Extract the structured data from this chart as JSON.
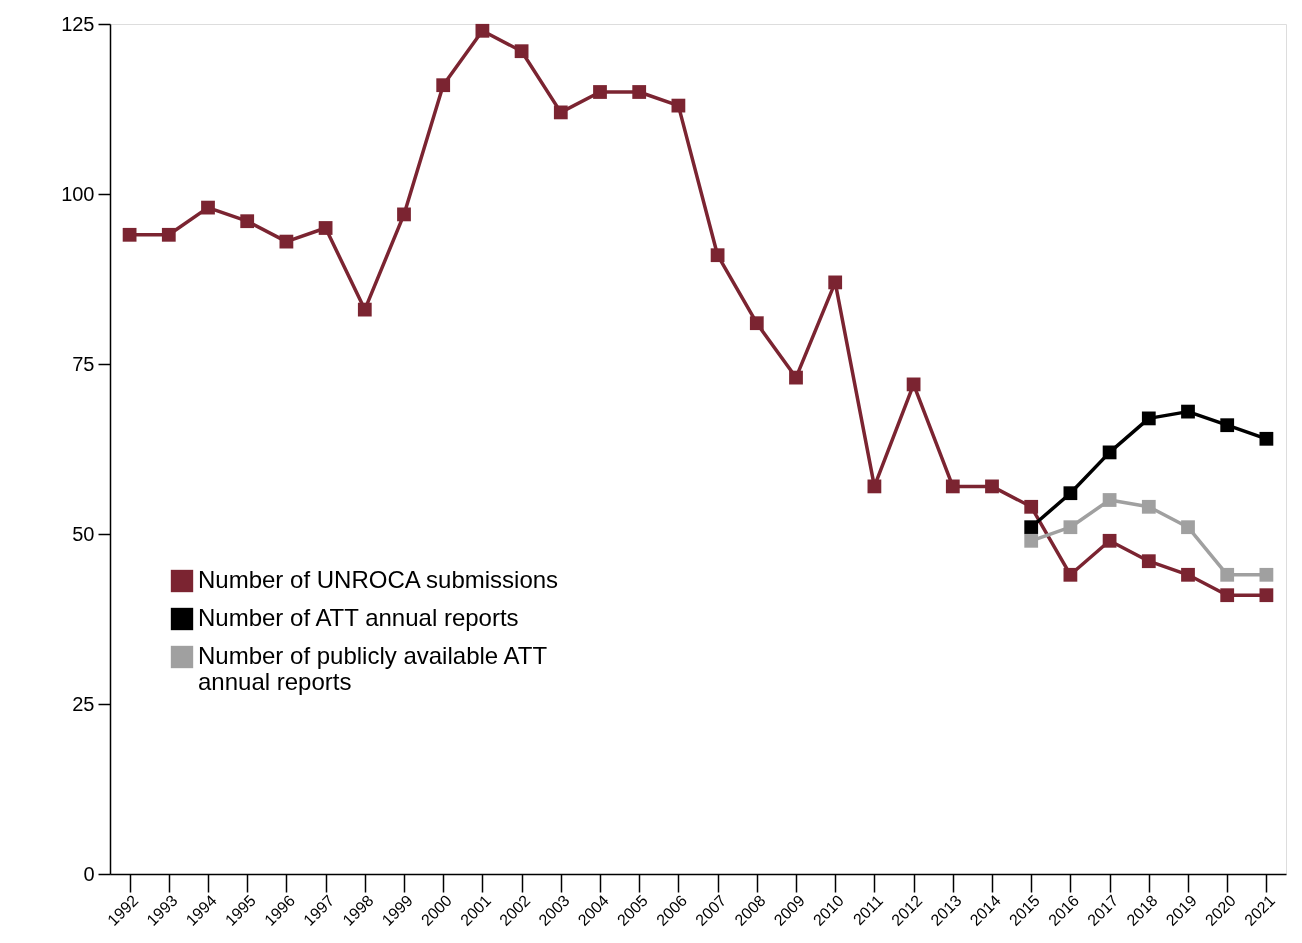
{
  "chart_data": {
    "type": "line",
    "categories": [
      "1992",
      "1993",
      "1994",
      "1995",
      "1996",
      "1997",
      "1998",
      "1999",
      "2000",
      "2001",
      "2002",
      "2003",
      "2004",
      "2005",
      "2006",
      "2007",
      "2008",
      "2009",
      "2010",
      "2011",
      "2012",
      "2013",
      "2014",
      "2015",
      "2016",
      "2017",
      "2018",
      "2019",
      "2020",
      "2021"
    ],
    "series": [
      {
        "name": "Number of UNROCA submissions",
        "color": "#7b2431",
        "values": [
          94,
          94,
          98,
          96,
          93,
          95,
          83,
          97,
          116,
          124,
          121,
          112,
          115,
          115,
          113,
          91,
          81,
          73,
          87,
          57,
          72,
          57,
          57,
          54,
          44,
          49,
          46,
          44,
          41,
          41
        ]
      },
      {
        "name": "Number of ATT annual reports",
        "color": "#000000",
        "values": [
          null,
          null,
          null,
          null,
          null,
          null,
          null,
          null,
          null,
          null,
          null,
          null,
          null,
          null,
          null,
          null,
          null,
          null,
          null,
          null,
          null,
          null,
          null,
          51,
          56,
          62,
          67,
          68,
          66,
          64
        ]
      },
      {
        "name": "Number of publicly available ATT annual reports",
        "color": "#a0a0a0",
        "values": [
          null,
          null,
          null,
          null,
          null,
          null,
          null,
          null,
          null,
          null,
          null,
          null,
          null,
          null,
          null,
          null,
          null,
          null,
          null,
          null,
          null,
          null,
          null,
          49,
          51,
          55,
          54,
          51,
          44,
          44
        ]
      }
    ],
    "ylim": [
      0,
      125
    ],
    "yticks": [
      0,
      25,
      50,
      75,
      100,
      125
    ],
    "grid": false,
    "legend": "left",
    "marker": "square",
    "line_style": "solid"
  }
}
